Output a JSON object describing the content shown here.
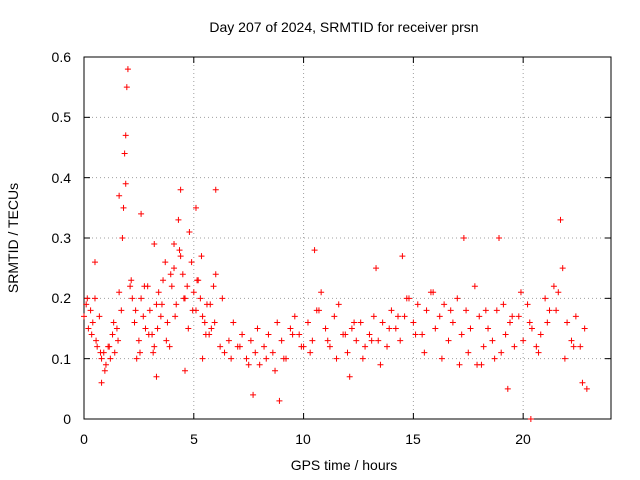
{
  "chart_data": {
    "type": "scatter",
    "title": "Day 207 of 2024, SRMTID for receiver prsn",
    "xlabel": "GPS time / hours",
    "ylabel": "SRMTID / TECUs",
    "xlim": [
      0,
      24
    ],
    "ylim": [
      0,
      0.6
    ],
    "xticks": [
      0,
      5,
      10,
      15,
      20
    ],
    "xtick_labels": [
      "0",
      "5",
      "10",
      "15",
      "20"
    ],
    "yticks": [
      0,
      0.1,
      0.2,
      0.3,
      0.4,
      0.5,
      0.6
    ],
    "ytick_labels": [
      "0",
      "0.1",
      "0.2",
      "0.3",
      "0.4",
      "0.5",
      "0.6"
    ],
    "grid": true,
    "marker": "+",
    "series": [
      {
        "name": "SRMTID",
        "color": "#ff0000",
        "x": [
          0.0,
          0.1,
          0.2,
          0.3,
          0.4,
          0.5,
          0.6,
          0.7,
          0.8,
          0.9,
          1.0,
          1.1,
          1.2,
          1.3,
          1.4,
          1.5,
          1.6,
          1.7,
          1.8,
          1.85,
          1.9,
          1.95,
          2.0,
          2.1,
          2.2,
          2.3,
          2.4,
          2.5,
          2.6,
          2.7,
          2.8,
          2.9,
          3.0,
          3.1,
          3.2,
          3.3,
          3.4,
          3.5,
          3.6,
          3.7,
          3.8,
          3.9,
          4.0,
          4.1,
          4.2,
          4.3,
          4.4,
          4.5,
          4.6,
          4.7,
          4.8,
          4.9,
          5.0,
          5.1,
          5.2,
          5.3,
          5.4,
          5.5,
          5.6,
          5.7,
          5.8,
          5.9,
          6.0,
          6.2,
          6.4,
          6.6,
          6.8,
          7.0,
          7.2,
          7.4,
          7.6,
          7.8,
          8.0,
          8.2,
          8.4,
          8.6,
          8.8,
          9.0,
          9.2,
          9.4,
          9.6,
          9.8,
          10.0,
          10.2,
          10.4,
          10.6,
          10.8,
          11.0,
          11.2,
          11.4,
          11.6,
          11.8,
          12.0,
          12.2,
          12.4,
          12.6,
          12.8,
          13.0,
          13.2,
          13.4,
          13.6,
          13.8,
          14.0,
          14.2,
          14.4,
          14.6,
          14.8,
          15.0,
          15.2,
          15.4,
          15.6,
          15.8,
          16.0,
          16.2,
          16.4,
          16.6,
          16.8,
          17.0,
          17.2,
          17.4,
          17.6,
          17.8,
          18.0,
          18.2,
          18.4,
          18.6,
          18.8,
          19.0,
          19.2,
          19.4,
          19.6,
          19.8,
          20.0,
          20.2,
          20.4,
          20.6,
          20.8,
          21.0,
          21.2,
          21.4,
          21.6,
          21.8,
          22.0,
          22.2,
          22.4,
          22.6,
          22.8,
          0.15,
          0.35,
          0.55,
          0.75,
          0.95,
          1.15,
          1.35,
          1.55,
          1.75,
          2.15,
          2.35,
          2.55,
          2.75,
          2.95,
          3.15,
          3.35,
          3.55,
          3.75,
          3.95,
          4.15,
          4.35,
          4.55,
          4.75,
          4.95,
          5.15,
          5.35,
          5.55,
          5.75,
          5.95,
          6.3,
          6.7,
          7.1,
          7.5,
          7.9,
          8.3,
          8.7,
          9.1,
          9.5,
          9.9,
          10.3,
          10.7,
          11.1,
          11.5,
          11.9,
          12.3,
          12.7,
          13.1,
          13.5,
          13.9,
          14.3,
          14.7,
          15.1,
          15.5,
          15.9,
          16.3,
          16.7,
          17.1,
          17.5,
          17.9,
          18.3,
          18.7,
          19.1,
          19.5,
          19.9,
          20.3,
          20.7,
          21.1,
          21.5,
          21.9,
          22.3,
          22.7,
          0.5,
          0.8,
          1.6,
          1.9,
          2.6,
          3.2,
          3.3,
          4.1,
          4.4,
          4.6,
          5.1,
          5.4,
          6.0,
          7.7,
          8.9,
          10.5,
          12.1,
          13.3,
          14.5,
          17.3,
          18.1,
          18.9,
          19.3,
          21.7,
          22.9,
          20.35
        ],
        "y": [
          0.17,
          0.19,
          0.15,
          0.18,
          0.16,
          0.2,
          0.12,
          0.17,
          0.1,
          0.11,
          0.09,
          0.12,
          0.1,
          0.14,
          0.11,
          0.15,
          0.21,
          0.18,
          0.35,
          0.44,
          0.47,
          0.55,
          0.58,
          0.22,
          0.2,
          0.16,
          0.1,
          0.13,
          0.2,
          0.17,
          0.15,
          0.22,
          0.18,
          0.14,
          0.12,
          0.19,
          0.21,
          0.17,
          0.23,
          0.26,
          0.16,
          0.12,
          0.22,
          0.25,
          0.19,
          0.33,
          0.27,
          0.24,
          0.2,
          0.22,
          0.31,
          0.26,
          0.21,
          0.18,
          0.23,
          0.2,
          0.17,
          0.16,
          0.19,
          0.14,
          0.15,
          0.22,
          0.24,
          0.12,
          0.11,
          0.13,
          0.16,
          0.12,
          0.14,
          0.1,
          0.13,
          0.11,
          0.09,
          0.12,
          0.14,
          0.11,
          0.16,
          0.13,
          0.1,
          0.15,
          0.17,
          0.14,
          0.12,
          0.16,
          0.13,
          0.18,
          0.21,
          0.15,
          0.12,
          0.17,
          0.19,
          0.14,
          0.11,
          0.15,
          0.13,
          0.16,
          0.12,
          0.14,
          0.17,
          0.13,
          0.16,
          0.12,
          0.18,
          0.15,
          0.13,
          0.17,
          0.2,
          0.16,
          0.19,
          0.14,
          0.18,
          0.21,
          0.15,
          0.17,
          0.19,
          0.13,
          0.16,
          0.2,
          0.14,
          0.18,
          0.15,
          0.22,
          0.17,
          0.12,
          0.15,
          0.13,
          0.18,
          0.11,
          0.14,
          0.16,
          0.12,
          0.17,
          0.13,
          0.19,
          0.15,
          0.12,
          0.14,
          0.2,
          0.18,
          0.22,
          0.21,
          0.25,
          0.16,
          0.13,
          0.17,
          0.12,
          0.15,
          0.2,
          0.14,
          0.13,
          0.11,
          0.08,
          0.12,
          0.16,
          0.13,
          0.3,
          0.23,
          0.18,
          0.11,
          0.22,
          0.14,
          0.11,
          0.15,
          0.19,
          0.13,
          0.24,
          0.17,
          0.28,
          0.2,
          0.15,
          0.18,
          0.23,
          0.27,
          0.14,
          0.19,
          0.16,
          0.2,
          0.1,
          0.12,
          0.09,
          0.15,
          0.1,
          0.08,
          0.1,
          0.14,
          0.12,
          0.11,
          0.18,
          0.13,
          0.1,
          0.14,
          0.16,
          0.1,
          0.13,
          0.09,
          0.15,
          0.17,
          0.2,
          0.14,
          0.11,
          0.21,
          0.1,
          0.18,
          0.09,
          0.11,
          0.09,
          0.18,
          0.1,
          0.19,
          0.17,
          0.21,
          0.16,
          0.11,
          0.16,
          0.18,
          0.1,
          0.12,
          0.06,
          0.26,
          0.06,
          0.37,
          0.39,
          0.34,
          0.29,
          0.07,
          0.29,
          0.38,
          0.08,
          0.35,
          0.1,
          0.38,
          0.04,
          0.03,
          0.28,
          0.07,
          0.25,
          0.27,
          0.3,
          0.09,
          0.3,
          0.05,
          0.33,
          0.05,
          0.0
        ]
      }
    ]
  }
}
